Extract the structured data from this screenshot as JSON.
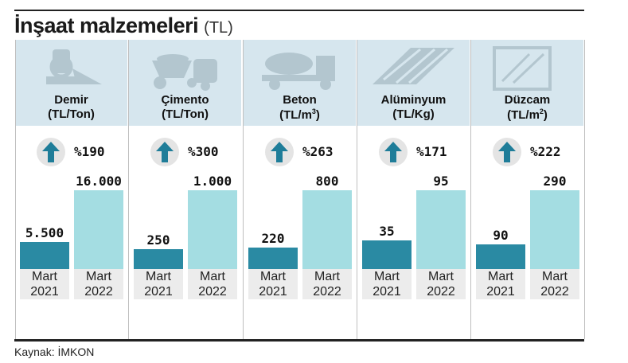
{
  "title": "İnşaat malzemeleri",
  "unit": "(TL)",
  "source": "Kaynak: İMKON",
  "colors": {
    "y2021": "#2a8aa3",
    "y2022": "#a4dde2",
    "header_bg": "#d6e6ee",
    "arrow": "#1f7d99"
  },
  "chart_data": {
    "type": "bar",
    "title": "İnşaat malzemeleri (TL)",
    "categories": [
      "Mart 2021",
      "Mart 2022"
    ],
    "panels": [
      {
        "material": "Demir",
        "unit": "(TL/Ton)",
        "unit_sup": "",
        "icon": "steel-icon",
        "change": "%190",
        "values": [
          5500,
          16000
        ],
        "labels": [
          "5.500",
          "16.000"
        ]
      },
      {
        "material": "Çimento",
        "unit": "(TL/Ton",
        "unit_sup": "",
        "unit_tail": ")",
        "icon": "cement-icon",
        "change": "%300",
        "values": [
          250,
          1000
        ],
        "labels": [
          "250",
          "1.000"
        ]
      },
      {
        "material": "Beton",
        "unit": "(TL/m",
        "unit_sup": "3",
        "unit_tail": ")",
        "icon": "concrete-truck-icon",
        "change": "%263",
        "values": [
          220,
          800
        ],
        "labels": [
          "220",
          "800"
        ]
      },
      {
        "material": "Alüminyum",
        "unit": "(TL/Kg)",
        "unit_sup": "",
        "icon": "aluminium-sheet-icon",
        "change": "%171",
        "values": [
          35,
          95
        ],
        "labels": [
          "35",
          "95"
        ]
      },
      {
        "material": "Düzcam",
        "unit": "(TL/m",
        "unit_sup": "2",
        "unit_tail": ")",
        "icon": "glass-pane-icon",
        "change": "%222",
        "values": [
          90,
          290
        ],
        "labels": [
          "90",
          "290"
        ]
      }
    ],
    "year_labels": [
      [
        "Mart",
        "2021"
      ],
      [
        "Mart",
        "2022"
      ]
    ]
  }
}
